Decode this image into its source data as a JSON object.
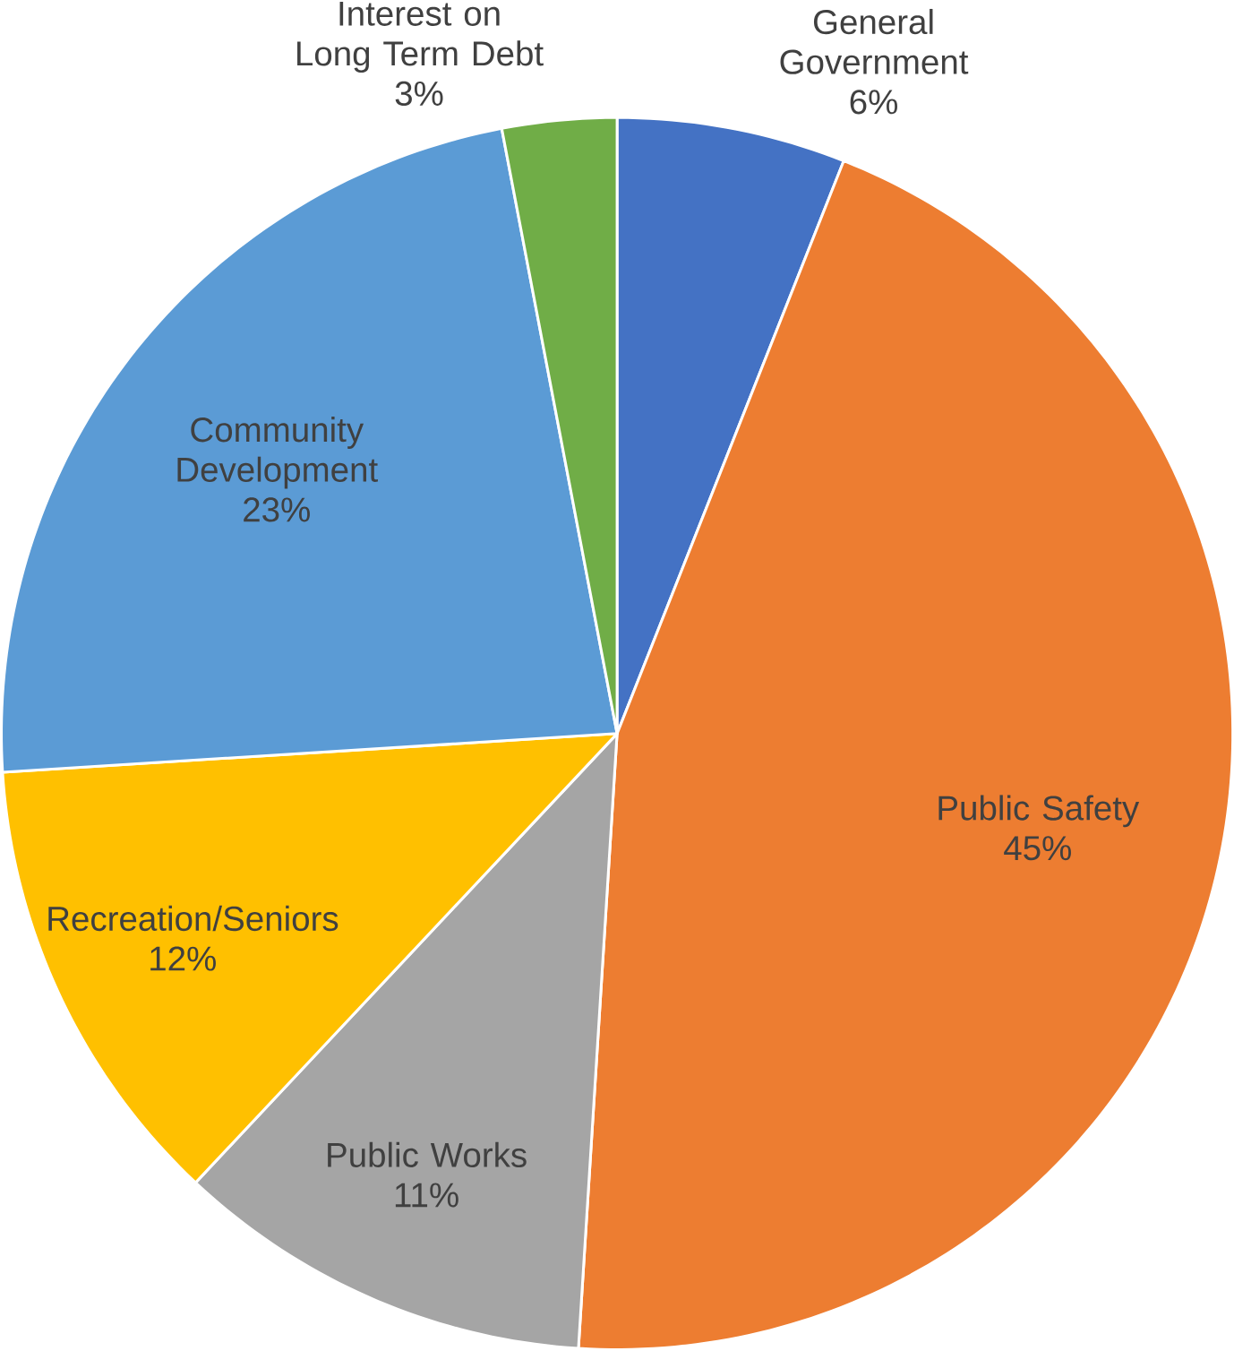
{
  "chart_data": {
    "type": "pie",
    "categories": [
      "General Government",
      "Public Safety",
      "Public Works",
      "Recreation/Seniors",
      "Community Development",
      "Interest on Long Term Debt"
    ],
    "values": [
      6,
      45,
      11,
      12,
      23,
      3
    ],
    "value_labels": [
      "6%",
      "45%",
      "11%",
      "12%",
      "23%",
      "3%"
    ],
    "colors": [
      "#4472c4",
      "#ed7d31",
      "#a5a5a5",
      "#ffc000",
      "#5b9bd5",
      "#70ad47"
    ]
  }
}
